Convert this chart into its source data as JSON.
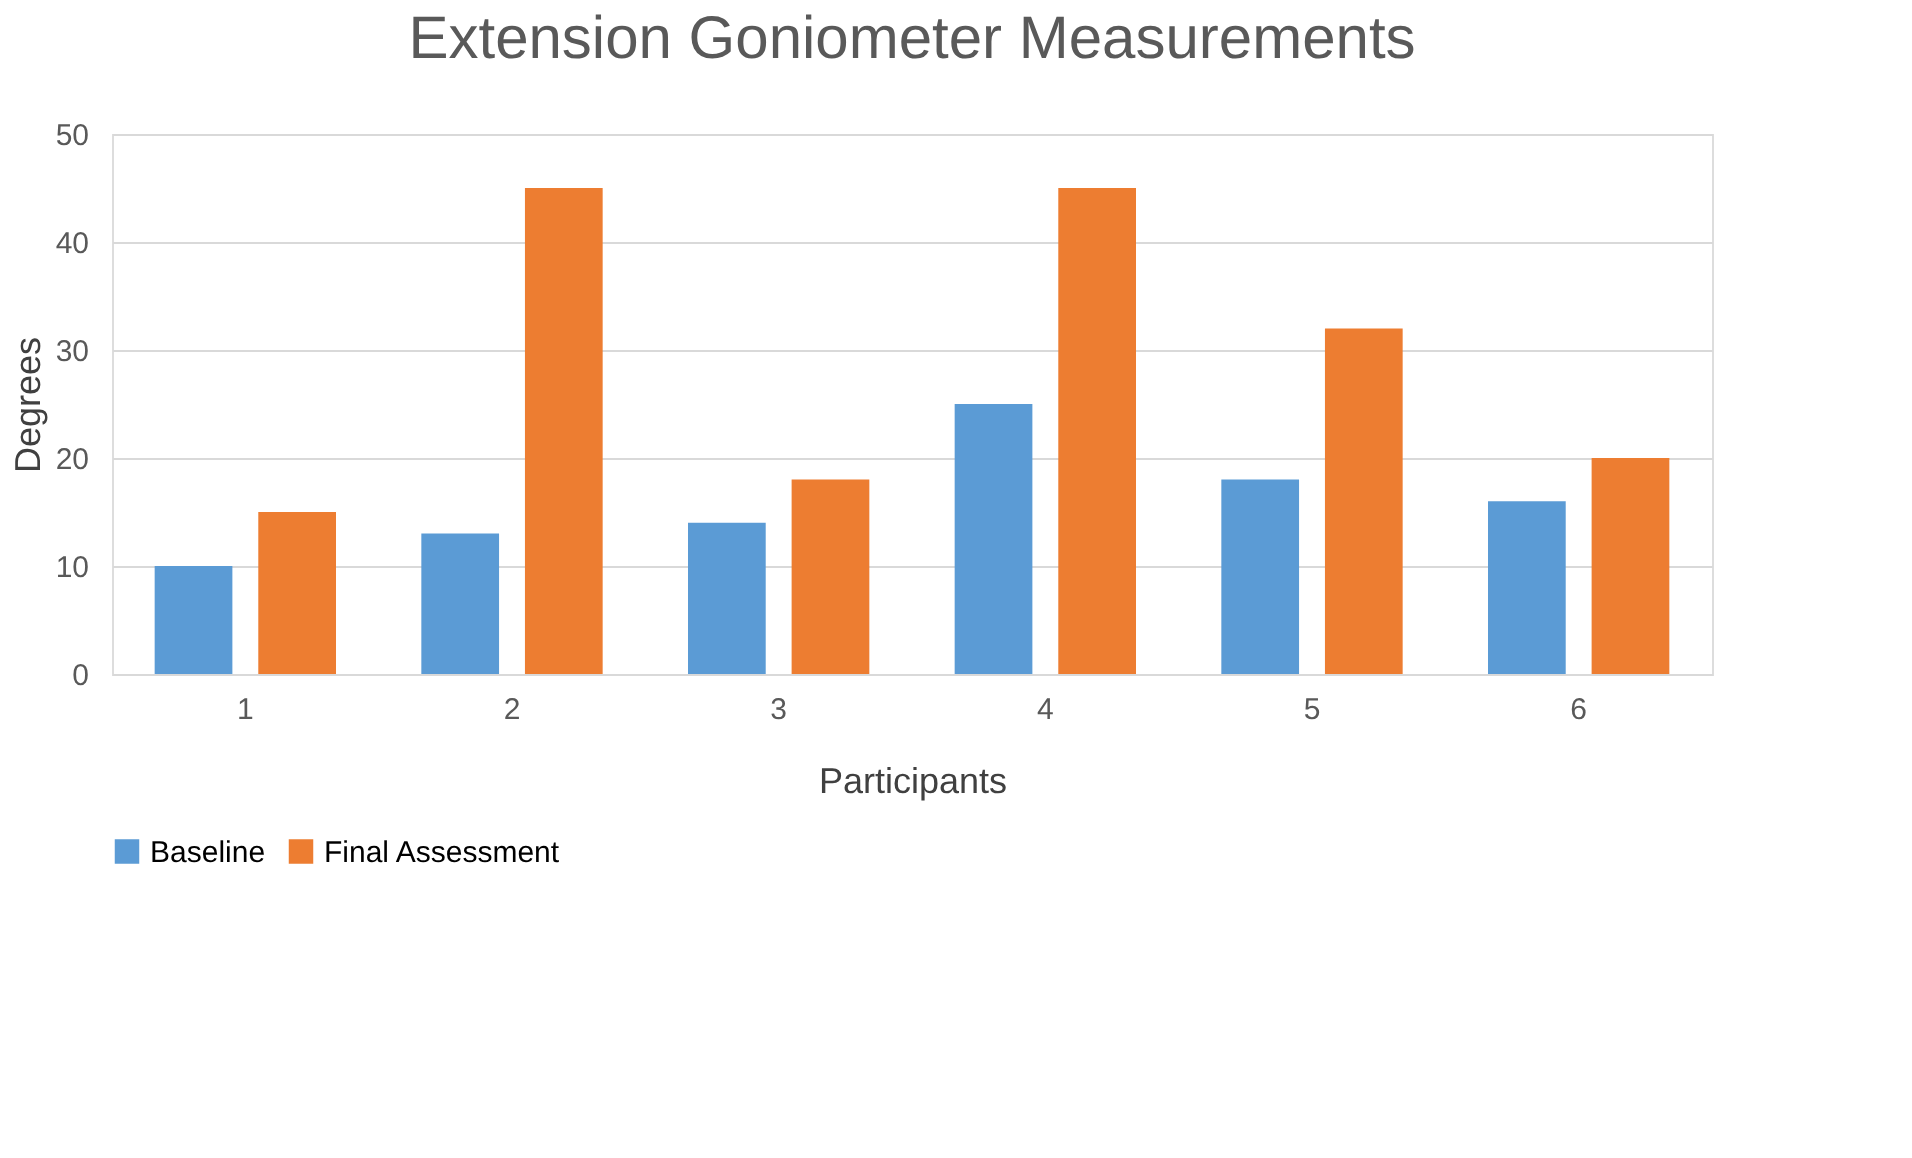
{
  "chart_data": {
    "type": "bar",
    "title": "Extension Goniometer Measurements",
    "xlabel": "Participants",
    "ylabel": "Degrees",
    "categories": [
      "1",
      "2",
      "3",
      "4",
      "5",
      "6"
    ],
    "series": [
      {
        "name": "Baseline",
        "color": "#5b9bd5",
        "values": [
          10,
          13,
          14,
          25,
          18,
          16
        ]
      },
      {
        "name": "Final Assessment",
        "color": "#ed7d31",
        "values": [
          15,
          45,
          18,
          45,
          32,
          20
        ]
      }
    ],
    "ylim": [
      0,
      50
    ],
    "yticks": [
      0,
      10,
      20,
      30,
      40,
      50
    ],
    "grid": "y",
    "legend": "bottom"
  }
}
